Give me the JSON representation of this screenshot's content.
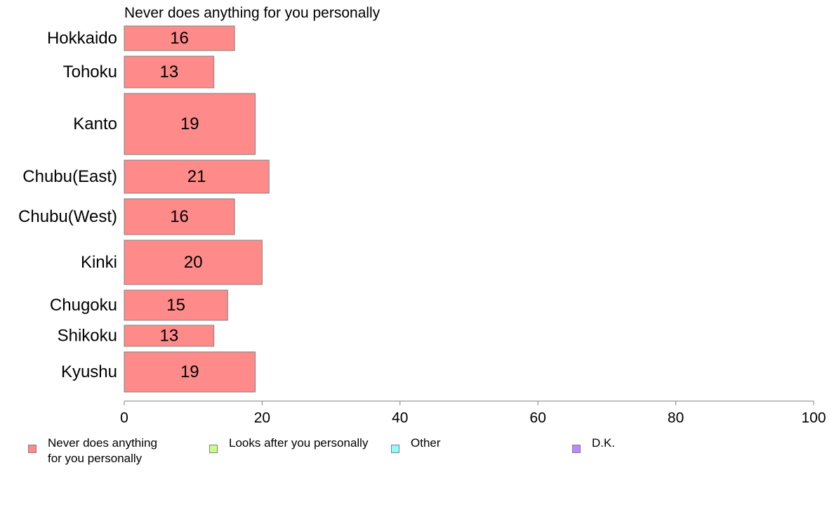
{
  "chart_data": {
    "type": "bar",
    "orientation": "horizontal",
    "title": "Never does anything for you personally",
    "categories": [
      "Hokkaido",
      "Tohoku",
      "Kanto",
      "Chubu(East)",
      "Chubu(West)",
      "Kinki",
      "Chugoku",
      "Shikoku",
      "Kyushu"
    ],
    "series": [
      {
        "name": "Never does anything for you personally",
        "values": [
          16,
          13,
          19,
          21,
          16,
          20,
          15,
          13,
          19
        ],
        "color": "#ff8a8a"
      }
    ],
    "data_labels": [
      "16",
      "13",
      "19",
      "21",
      "16",
      "20",
      "15",
      "13",
      "19"
    ],
    "xlim": [
      0,
      100
    ],
    "xticks": [
      0,
      20,
      40,
      60,
      80,
      100
    ],
    "xtick_labels": [
      "0",
      "20",
      "40",
      "60",
      "80",
      "100"
    ],
    "grid": false,
    "legend_position": "bottom",
    "legend": [
      {
        "label": "Never does anything\nfor you personally",
        "color": "#ff8a8a"
      },
      {
        "label": "Looks after you personally",
        "color": "#c8ff8a"
      },
      {
        "label": "Other",
        "color": "#8affff"
      },
      {
        "label": "D.K.",
        "color": "#b88aff"
      }
    ]
  }
}
